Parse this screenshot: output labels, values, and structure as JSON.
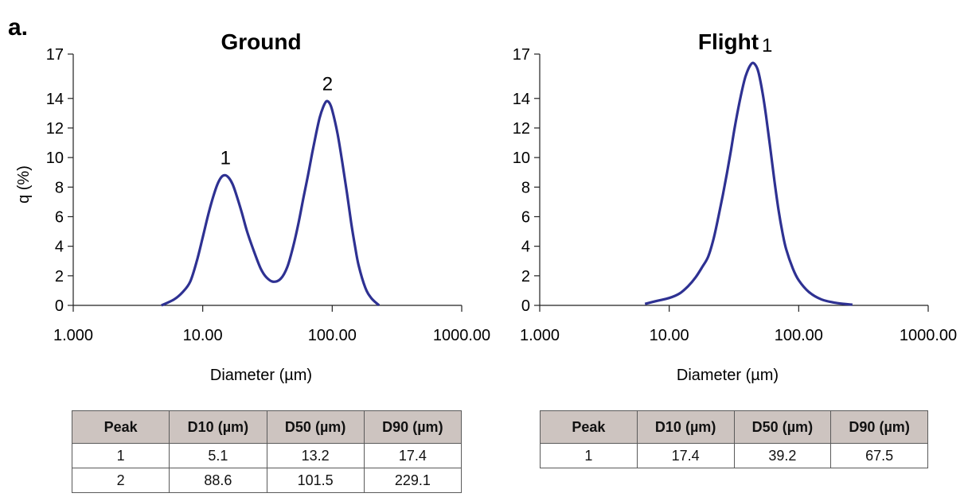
{
  "figure_label": "a.",
  "chart_data": [
    {
      "type": "line",
      "title": "Ground",
      "xlabel": "Diameter (µm)",
      "ylabel": "q (%)",
      "xscale": "log",
      "xlim": [
        1,
        1000
      ],
      "ylim": [
        0,
        17
      ],
      "xtick_labels": [
        "1.000",
        "10.00",
        "100.00",
        "1000.00"
      ],
      "ytick_labels": [
        "0",
        "2",
        "4",
        "6",
        "8",
        "10",
        "12",
        "14",
        "17"
      ],
      "grid": false,
      "series": [
        {
          "color": "#2e3192",
          "x": [
            4.8,
            6,
            7,
            8,
            9,
            10,
            11,
            12,
            13,
            14,
            15,
            16,
            17,
            18,
            20,
            22,
            25,
            28,
            31,
            35,
            40,
            45,
            50,
            55,
            60,
            65,
            70,
            75,
            80,
            85,
            90,
            95,
            100,
            110,
            120,
            130,
            140,
            150,
            160,
            180,
            200,
            230
          ],
          "y": [
            0,
            0.4,
            0.9,
            1.6,
            3.0,
            4.6,
            6.1,
            7.3,
            8.2,
            8.7,
            8.8,
            8.6,
            8.2,
            7.6,
            6.3,
            5.0,
            3.6,
            2.5,
            1.9,
            1.6,
            1.8,
            2.6,
            4.0,
            5.6,
            7.3,
            8.8,
            10.3,
            11.6,
            12.7,
            13.4,
            13.8,
            13.7,
            13.2,
            11.6,
            9.6,
            7.6,
            5.6,
            4.0,
            2.7,
            1.2,
            0.5,
            0
          ]
        }
      ],
      "annotations": [
        {
          "text": "1",
          "x": 15,
          "y": 8.8
        },
        {
          "text": "2",
          "x": 92,
          "y": 13.8
        }
      ]
    },
    {
      "type": "line",
      "title": "Flight",
      "xlabel": "Diameter (µm)",
      "ylabel": "",
      "xscale": "log",
      "xlim": [
        1,
        1000
      ],
      "ylim": [
        0,
        17
      ],
      "xtick_labels": [
        "1.000",
        "10.00",
        "100.00",
        "1000.00"
      ],
      "ytick_labels": [
        "0",
        "2",
        "4",
        "6",
        "8",
        "10",
        "12",
        "14",
        "17"
      ],
      "grid": false,
      "series": [
        {
          "color": "#2e3192",
          "x": [
            6.5,
            8,
            10,
            12,
            14,
            16,
            18,
            20,
            22,
            24,
            26,
            28,
            30,
            32,
            35,
            38,
            40,
            42,
            44,
            46,
            48,
            50,
            53,
            56,
            60,
            65,
            70,
            75,
            80,
            90,
            100,
            120,
            150,
            200,
            260
          ],
          "y": [
            0.1,
            0.3,
            0.5,
            0.8,
            1.3,
            1.9,
            2.6,
            3.3,
            4.5,
            6.0,
            7.5,
            9.0,
            10.5,
            12.0,
            13.8,
            15.2,
            15.8,
            16.2,
            16.4,
            16.3,
            16.0,
            15.4,
            14.2,
            12.8,
            10.8,
            8.4,
            6.4,
            4.9,
            3.8,
            2.5,
            1.7,
            0.9,
            0.4,
            0.15,
            0.05
          ]
        }
      ],
      "annotations": [
        {
          "text": "1",
          "x": 57,
          "y": 16.4
        }
      ]
    }
  ],
  "tables": [
    {
      "headers": [
        "Peak",
        "D10 (µm)",
        "D50 (µm)",
        "D90 (µm)"
      ],
      "rows": [
        [
          "1",
          "5.1",
          "13.2",
          "17.4"
        ],
        [
          "2",
          "88.6",
          "101.5",
          "229.1"
        ]
      ]
    },
    {
      "headers": [
        "Peak",
        "D10 (µm)",
        "D50 (µm)",
        "D90 (µm)"
      ],
      "rows": [
        [
          "1",
          "17.4",
          "39.2",
          "67.5"
        ]
      ]
    }
  ]
}
